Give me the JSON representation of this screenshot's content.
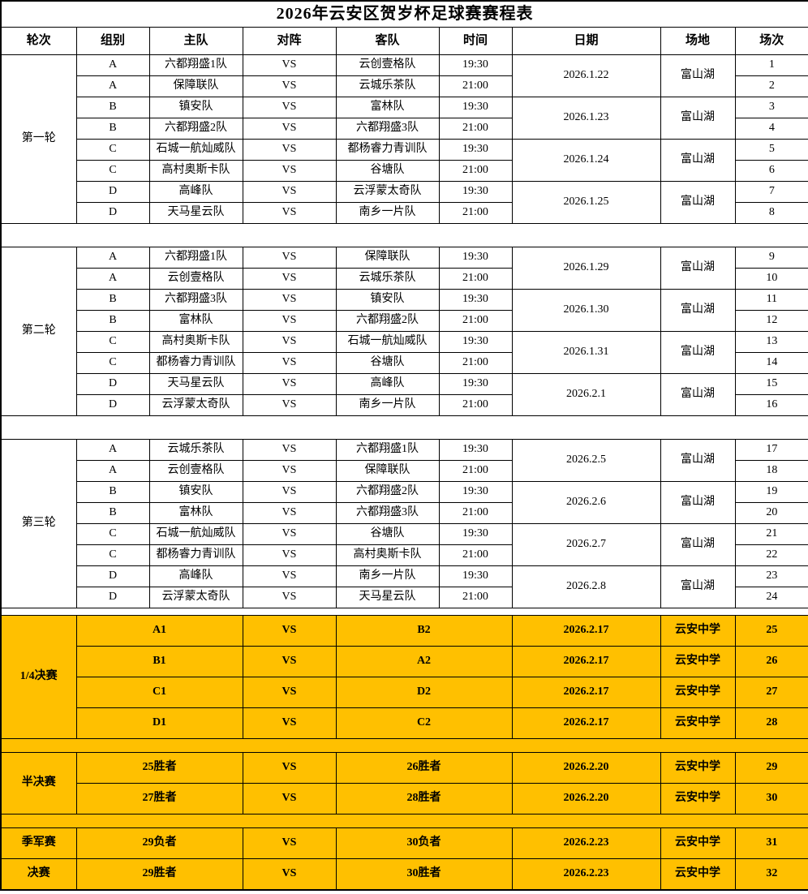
{
  "title": "2026年云安区贺岁杯足球赛赛程表",
  "columns": [
    "轮次",
    "组别",
    "主队",
    "对阵",
    "客队",
    "时间",
    "日期",
    "场地",
    "场次"
  ],
  "vs_label": "VS",
  "colors": {
    "highlight": "#FFC000",
    "border": "#000000",
    "background": "#FFFFFF"
  },
  "rounds": [
    {
      "name": "第一轮",
      "matches": [
        {
          "group": "A",
          "home": "六都翔盛1队",
          "away": "云创壹格队",
          "time": "19:30",
          "match_no": "1"
        },
        {
          "group": "A",
          "home": "保障联队",
          "away": "云城乐茶队",
          "time": "21:00",
          "match_no": "2"
        },
        {
          "group": "B",
          "home": "镇安队",
          "away": "富林队",
          "time": "19:30",
          "match_no": "3"
        },
        {
          "group": "B",
          "home": "六都翔盛2队",
          "away": "六都翔盛3队",
          "time": "21:00",
          "match_no": "4"
        },
        {
          "group": "C",
          "home": "石城一航灿威队",
          "away": "都杨睿力青训队",
          "time": "19:30",
          "match_no": "5"
        },
        {
          "group": "C",
          "home": "高村奥斯卡队",
          "away": "谷塘队",
          "time": "21:00",
          "match_no": "6"
        },
        {
          "group": "D",
          "home": "高峰队",
          "away": "云浮蒙太奇队",
          "time": "19:30",
          "match_no": "7"
        },
        {
          "group": "D",
          "home": "天马星云队",
          "away": "南乡一片队",
          "time": "21:00",
          "match_no": "8"
        }
      ],
      "days": [
        {
          "date": "2026.1.22",
          "venue": "富山湖"
        },
        {
          "date": "2026.1.23",
          "venue": "富山湖"
        },
        {
          "date": "2026.1.24",
          "venue": "富山湖"
        },
        {
          "date": "2026.1.25",
          "venue": "富山湖"
        }
      ]
    },
    {
      "name": "第二轮",
      "matches": [
        {
          "group": "A",
          "home": "六都翔盛1队",
          "away": "保障联队",
          "time": "19:30",
          "match_no": "9"
        },
        {
          "group": "A",
          "home": "云创壹格队",
          "away": "云城乐茶队",
          "time": "21:00",
          "match_no": "10"
        },
        {
          "group": "B",
          "home": "六都翔盛3队",
          "away": "镇安队",
          "time": "19:30",
          "match_no": "11"
        },
        {
          "group": "B",
          "home": "富林队",
          "away": "六都翔盛2队",
          "time": "21:00",
          "match_no": "12"
        },
        {
          "group": "C",
          "home": "高村奥斯卡队",
          "away": "石城一航灿威队",
          "time": "19:30",
          "match_no": "13"
        },
        {
          "group": "C",
          "home": "都杨睿力青训队",
          "away": "谷塘队",
          "time": "21:00",
          "match_no": "14"
        },
        {
          "group": "D",
          "home": "天马星云队",
          "away": "高峰队",
          "time": "19:30",
          "match_no": "15"
        },
        {
          "group": "D",
          "home": "云浮蒙太奇队",
          "away": "南乡一片队",
          "time": "21:00",
          "match_no": "16"
        }
      ],
      "days": [
        {
          "date": "2026.1.29",
          "venue": "富山湖"
        },
        {
          "date": "2026.1.30",
          "venue": "富山湖"
        },
        {
          "date": "2026.1.31",
          "venue": "富山湖"
        },
        {
          "date": "2026.2.1",
          "venue": "富山湖"
        }
      ]
    },
    {
      "name": "第三轮",
      "matches": [
        {
          "group": "A",
          "home": "云城乐茶队",
          "away": "六都翔盛1队",
          "time": "19:30",
          "match_no": "17"
        },
        {
          "group": "A",
          "home": "云创壹格队",
          "away": "保障联队",
          "time": "21:00",
          "match_no": "18"
        },
        {
          "group": "B",
          "home": "镇安队",
          "away": "六都翔盛2队",
          "time": "19:30",
          "match_no": "19"
        },
        {
          "group": "B",
          "home": "富林队",
          "away": "六都翔盛3队",
          "time": "21:00",
          "match_no": "20"
        },
        {
          "group": "C",
          "home": "石城一航灿威队",
          "away": "谷塘队",
          "time": "19:30",
          "match_no": "21"
        },
        {
          "group": "C",
          "home": "都杨睿力青训队",
          "away": "高村奥斯卡队",
          "time": "21:00",
          "match_no": "22"
        },
        {
          "group": "D",
          "home": "高峰队",
          "away": "南乡一片队",
          "time": "19:30",
          "match_no": "23"
        },
        {
          "group": "D",
          "home": "云浮蒙太奇队",
          "away": "天马星云队",
          "time": "21:00",
          "match_no": "24"
        }
      ],
      "days": [
        {
          "date": "2026.2.5",
          "venue": "富山湖"
        },
        {
          "date": "2026.2.6",
          "venue": "富山湖"
        },
        {
          "date": "2026.2.7",
          "venue": "富山湖"
        },
        {
          "date": "2026.2.8",
          "venue": "富山湖"
        }
      ]
    }
  ],
  "knockout": [
    {
      "name": "1/4决赛",
      "matches": [
        {
          "home": "A1",
          "away": "B2",
          "date": "2026.2.17",
          "venue": "云安中学",
          "match_no": "25"
        },
        {
          "home": "B1",
          "away": "A2",
          "date": "2026.2.17",
          "venue": "云安中学",
          "match_no": "26"
        },
        {
          "home": "C1",
          "away": "D2",
          "date": "2026.2.17",
          "venue": "云安中学",
          "match_no": "27"
        },
        {
          "home": "D1",
          "away": "C2",
          "date": "2026.2.17",
          "venue": "云安中学",
          "match_no": "28"
        }
      ]
    },
    {
      "name": "半决赛",
      "matches": [
        {
          "home": "25胜者",
          "away": "26胜者",
          "date": "2026.2.20",
          "venue": "云安中学",
          "match_no": "29"
        },
        {
          "home": "27胜者",
          "away": "28胜者",
          "date": "2026.2.20",
          "venue": "云安中学",
          "match_no": "30"
        }
      ]
    },
    {
      "name": "季军赛",
      "matches": [
        {
          "home": "29负者",
          "away": "30负者",
          "date": "2026.2.23",
          "venue": "云安中学",
          "match_no": "31"
        }
      ]
    },
    {
      "name": "决赛",
      "matches": [
        {
          "home": "29胜者",
          "away": "30胜者",
          "date": "2026.2.23",
          "venue": "云安中学",
          "match_no": "32"
        }
      ]
    }
  ]
}
